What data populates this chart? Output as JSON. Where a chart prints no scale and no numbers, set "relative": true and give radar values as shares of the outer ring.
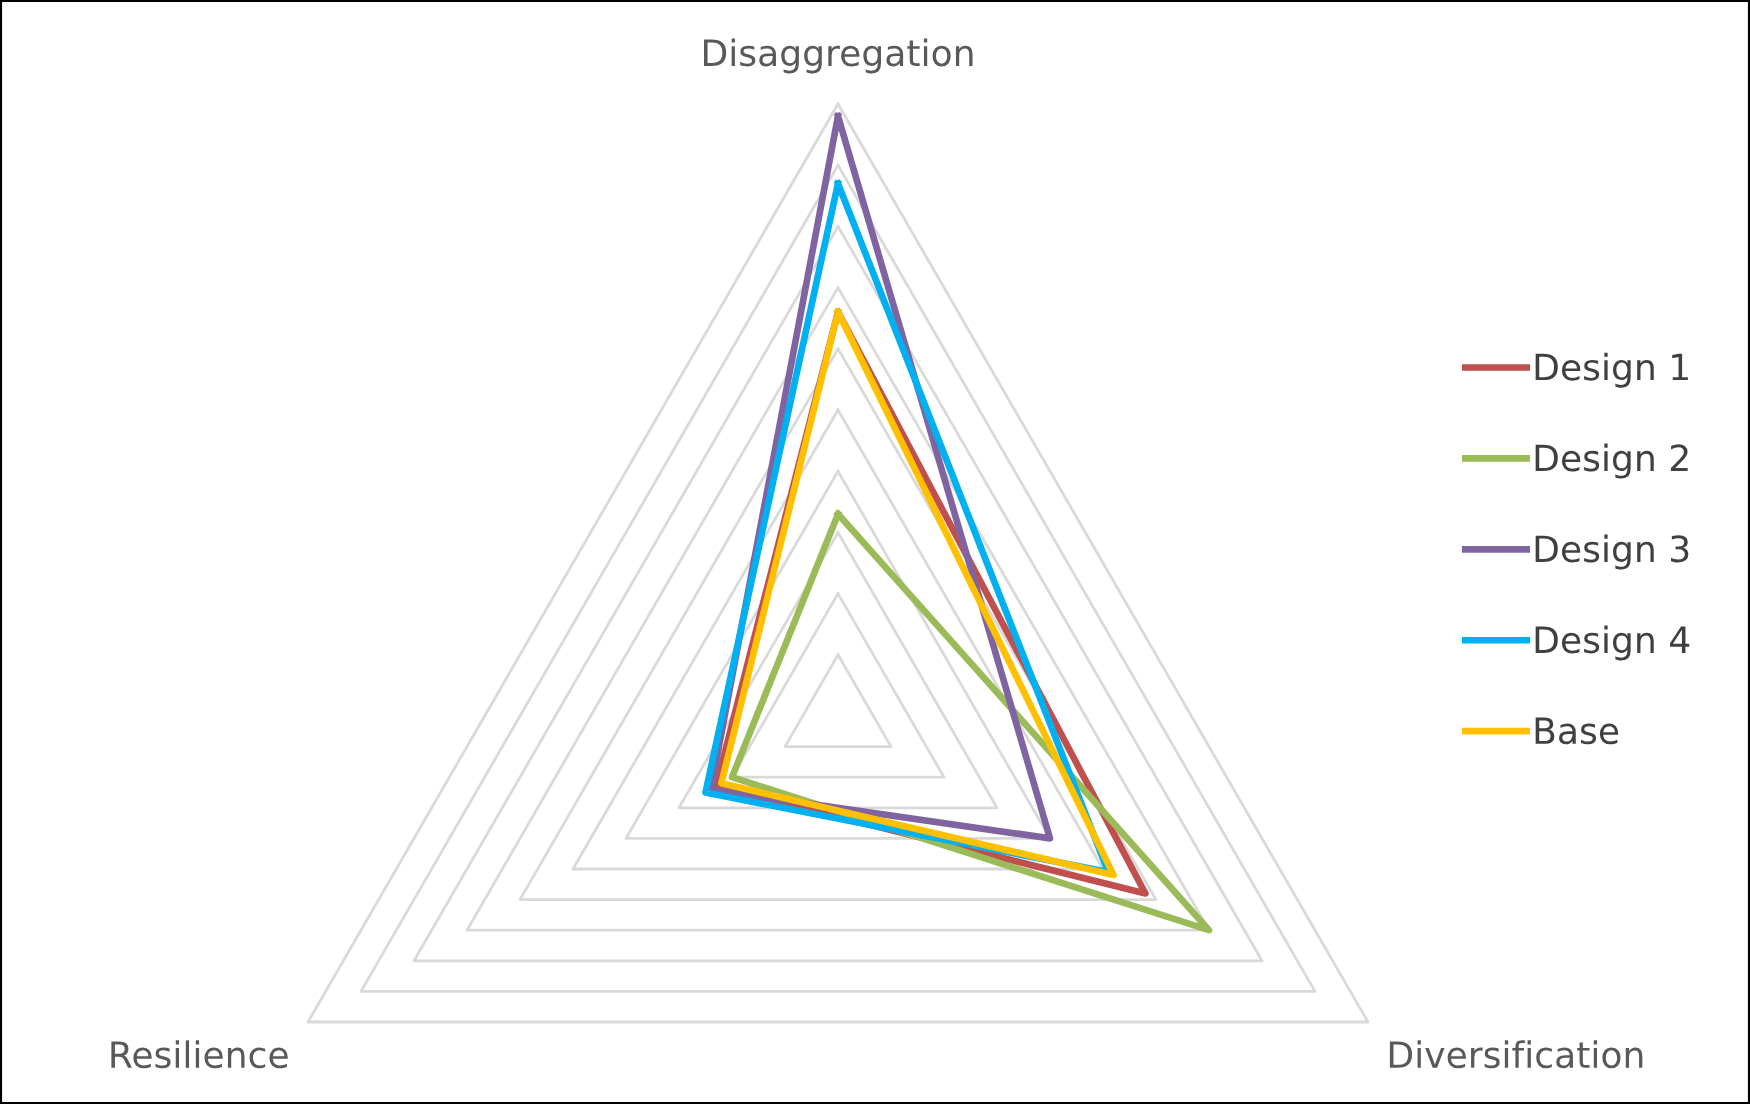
{
  "chart_data": {
    "type": "radar",
    "relative": true,
    "grid": true,
    "legend": "right",
    "categories": [
      "Disaggregation",
      "Diversification",
      "Resilience"
    ],
    "series": [
      {
        "name": "Design 1",
        "color": "#c0504d",
        "values": [
          0.66,
          0.58,
          0.23
        ]
      },
      {
        "name": "Design 2",
        "color": "#9bbb59",
        "values": [
          0.33,
          0.7,
          0.2
        ]
      },
      {
        "name": "Design 3",
        "color": "#8064a2",
        "values": [
          0.98,
          0.4,
          0.24
        ]
      },
      {
        "name": "Design 4",
        "color": "#00b0f0",
        "values": [
          0.87,
          0.51,
          0.25
        ]
      },
      {
        "name": "Base",
        "color": "#ffc000",
        "values": [
          0.66,
          0.52,
          0.22
        ]
      }
    ]
  }
}
